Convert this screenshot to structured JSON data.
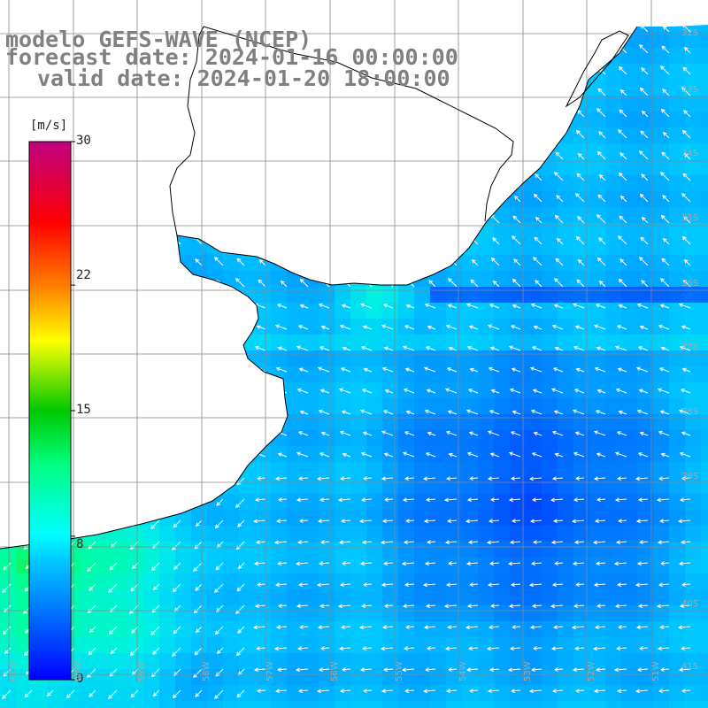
{
  "title": {
    "line1": "modelo GEFS-WAVE (NCEP)",
    "line2": "forecast date: 2024-01-16 00:00:00",
    "line3": "valid date: 2024-01-20 18:00:00"
  },
  "colorbar": {
    "units": "[m/s]",
    "ticks": [
      {
        "label": "30",
        "value": 30
      },
      {
        "label": "22",
        "value": 22
      },
      {
        "label": "15",
        "value": 15
      },
      {
        "label": "8",
        "value": 8
      },
      {
        "label": "0",
        "value": 0
      }
    ],
    "colors": [
      "#0000ff",
      "#0078ff",
      "#00c8ff",
      "#00ffff",
      "#00ff80",
      "#00c800",
      "#ffff00",
      "#ff8000",
      "#ff0000",
      "#c00080"
    ]
  },
  "map": {
    "land_color": "#ffffff",
    "grid": true,
    "lat_labels": [
      "32S",
      "33S",
      "34S",
      "35S",
      "36S",
      "37S",
      "38S",
      "39S",
      "40S",
      "41S"
    ],
    "lon_labels": [
      "61W",
      "60W",
      "59W",
      "58W",
      "57W",
      "56W",
      "55W",
      "54W",
      "53W",
      "52W",
      "51W"
    ],
    "field": "wind speed (m/s) with direction arrows"
  }
}
